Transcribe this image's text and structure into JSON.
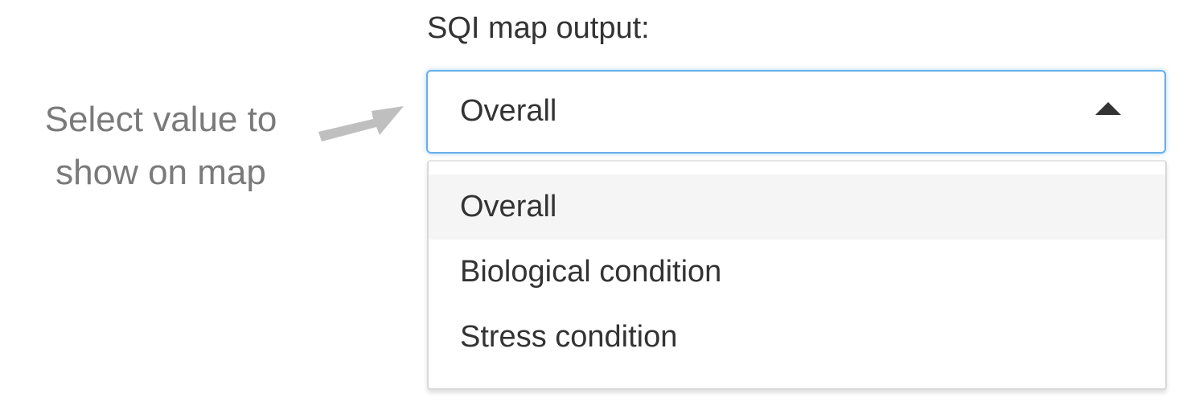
{
  "annotation": {
    "text": "Select  value to\nshow on map",
    "color": "#7a7a7a",
    "arrow_color": "#bfbfbf"
  },
  "select": {
    "label": "SQI map output:",
    "selected": "Overall",
    "focus_color": "#66afe9",
    "options": [
      {
        "label": "Overall",
        "highlighted": true
      },
      {
        "label": "Biological condition",
        "highlighted": false
      },
      {
        "label": "Stress condition",
        "highlighted": false
      }
    ]
  }
}
